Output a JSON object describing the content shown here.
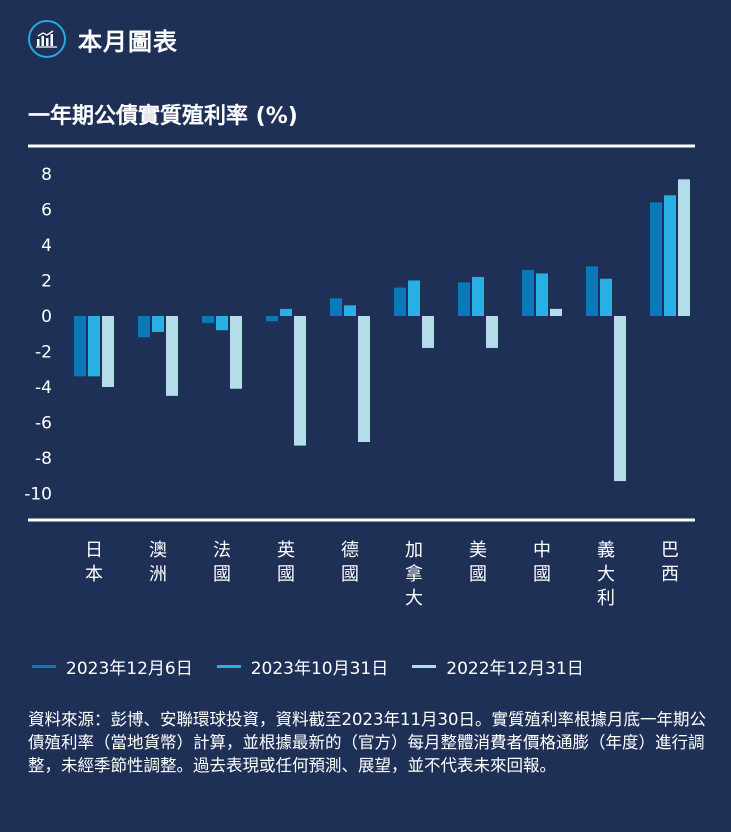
{
  "header": {
    "title": "本月圖表",
    "icon": "bar-chart-icon"
  },
  "colors": {
    "background": "#1f3057",
    "accent": "#2aa7dc",
    "series": [
      "#0a78b9",
      "#27b0e6",
      "#b3dde9"
    ]
  },
  "chart_data": {
    "type": "bar",
    "title": "一年期公債實質殖利率 (%)",
    "categories": [
      "日本",
      "澳洲",
      "法國",
      "英國",
      "德國",
      "加拿大",
      "美國",
      "中國",
      "義大利",
      "巴西"
    ],
    "series": [
      {
        "name": "2023年12月6日",
        "values": [
          -3.4,
          -1.2,
          -0.4,
          -0.3,
          1.0,
          1.6,
          1.9,
          2.6,
          2.8,
          6.4
        ]
      },
      {
        "name": "2023年10月31日",
        "values": [
          -3.4,
          -0.9,
          -0.8,
          0.4,
          0.6,
          2.0,
          2.2,
          2.4,
          2.1,
          6.8
        ]
      },
      {
        "name": "2022年12月31日",
        "values": [
          -4.0,
          -4.5,
          -4.1,
          -7.3,
          -7.1,
          -1.8,
          -1.8,
          0.4,
          -9.3,
          7.7
        ]
      }
    ],
    "yticks": [
      8,
      6,
      4,
      2,
      0,
      -2,
      -4,
      -6,
      -8,
      -10
    ],
    "ylim": [
      -10,
      8
    ],
    "legend_position": "bottom"
  },
  "source_text": "資料來源：彭博、安聯環球投資，資料截至2023年11月30日。實質殖利率根據月底一年期公債殖利率（當地貨幣）計算，並根據最新的（官方）每月整體消費者價格通膨（年度）進行調整，未經季節性調整。過去表現或任何預測、展望，並不代表未來回報。"
}
